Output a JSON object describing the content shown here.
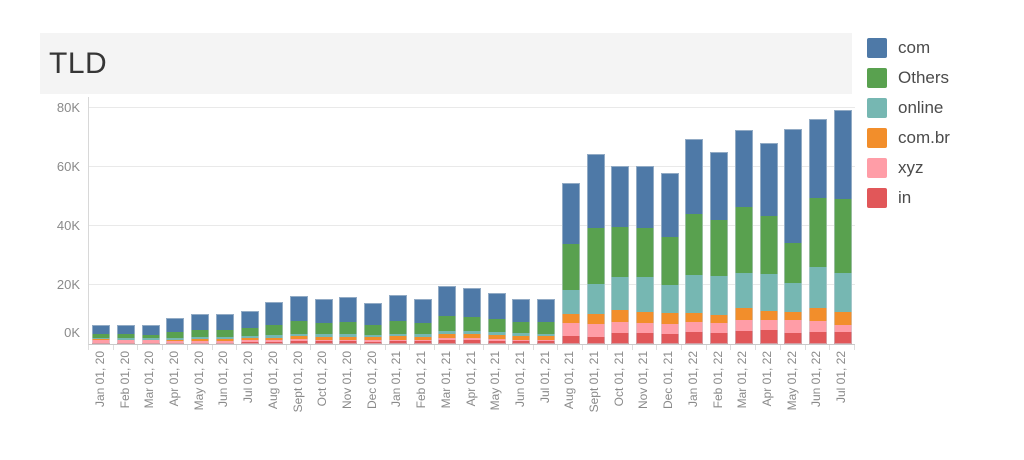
{
  "header": {
    "title": "TLD"
  },
  "chart_data": {
    "type": "bar",
    "stacked": true,
    "title": "TLD",
    "values_unit": "thousands",
    "legend_position": "right",
    "grid": "horizontal",
    "ylim_thousands": [
      0,
      83.7
    ],
    "y_ticks": [
      {
        "value": 0,
        "label": "0K"
      },
      {
        "value": 20,
        "label": "20K"
      },
      {
        "value": 40,
        "label": "40K"
      },
      {
        "value": 60,
        "label": "60K"
      },
      {
        "value": 80,
        "label": "80K"
      }
    ],
    "categories": [
      "Jan 01, 20",
      "Feb 01, 20",
      "Mar 01, 20",
      "Apr 01, 20",
      "May 01, 20",
      "Jun 01, 20",
      "Jul 01, 20",
      "Aug 01, 20",
      "Sept 01, 20",
      "Oct 01, 20",
      "Nov 01, 20",
      "Dec 01, 20",
      "Jan 01, 21",
      "Feb 01, 21",
      "Mar 01, 21",
      "Apr 01, 21",
      "May 01, 21",
      "Jun 01, 21",
      "Jul 01, 21",
      "Aug 01, 21",
      "Sept 01, 21",
      "Oct 01, 21",
      "Nov 01, 21",
      "Dec 01, 21",
      "Jan 01, 22",
      "Feb 01, 22",
      "Mar 01, 22",
      "Apr 01, 22",
      "May 01, 22",
      "Jun 01, 22",
      "Jul 01, 22"
    ],
    "series": [
      {
        "name": "com",
        "color": "#4e79a7",
        "values": [
          3.2,
          3.2,
          3.3,
          4.5,
          5.2,
          5.3,
          5.8,
          7.5,
          8.6,
          8.0,
          8.4,
          7.2,
          8.8,
          7.9,
          10.2,
          9.8,
          9.0,
          7.8,
          7.8,
          20.9,
          24.9,
          20.5,
          21.1,
          21.7,
          25.5,
          23.2,
          26.2,
          24.6,
          38.5,
          26.8,
          30.2
        ]
      },
      {
        "name": "Others",
        "color": "#59a14f",
        "values": [
          1.2,
          1.3,
          1.2,
          2.2,
          2.5,
          2.4,
          2.7,
          3.6,
          4.2,
          3.9,
          4.1,
          3.5,
          4.3,
          3.9,
          5.0,
          4.8,
          4.4,
          3.8,
          3.9,
          15.5,
          19.2,
          17.0,
          16.4,
          16.4,
          20.6,
          18.8,
          22.1,
          19.8,
          13.7,
          23.2,
          24.9
        ]
      },
      {
        "name": "online",
        "color": "#76b7b2",
        "values": [
          0.5,
          0.5,
          0.5,
          0.6,
          0.7,
          0.7,
          0.8,
          0.8,
          0.9,
          0.9,
          0.9,
          0.8,
          0.9,
          0.9,
          1.0,
          1.0,
          1.0,
          1.0,
          0.9,
          8.2,
          10.0,
          11.3,
          11.9,
          9.6,
          12.8,
          13.4,
          12.1,
          12.4,
          9.7,
          13.9,
          13.3
        ]
      },
      {
        "name": "com.br",
        "color": "#f28e2b",
        "values": [
          0.3,
          0.3,
          0.3,
          0.4,
          0.7,
          0.7,
          0.6,
          0.8,
          1.0,
          0.9,
          1.0,
          0.9,
          1.1,
          1.1,
          1.4,
          1.3,
          1.2,
          1.1,
          1.1,
          3.1,
          3.4,
          3.9,
          3.7,
          3.7,
          3.0,
          2.8,
          4.0,
          3.1,
          2.8,
          4.5,
          4.5
        ]
      },
      {
        "name": "xyz",
        "color": "#ff9da7",
        "values": [
          0.8,
          0.7,
          0.7,
          0.6,
          0.5,
          0.5,
          0.8,
          0.6,
          0.6,
          0.6,
          0.6,
          0.6,
          0.6,
          0.5,
          0.8,
          0.8,
          0.7,
          0.6,
          0.6,
          4.3,
          4.3,
          3.8,
          3.6,
          3.4,
          3.6,
          3.2,
          3.7,
          3.4,
          4.5,
          3.6,
          2.4
        ]
      },
      {
        "name": "in",
        "color": "#e15759",
        "values": [
          0.5,
          0.5,
          0.5,
          0.4,
          0.5,
          0.5,
          0.6,
          0.8,
          1.0,
          0.9,
          0.9,
          0.8,
          0.9,
          0.9,
          1.3,
          1.2,
          1.1,
          0.9,
          0.9,
          2.7,
          2.5,
          3.8,
          3.6,
          3.3,
          4.0,
          3.8,
          4.4,
          4.7,
          3.6,
          4.2,
          4.0
        ]
      }
    ]
  }
}
